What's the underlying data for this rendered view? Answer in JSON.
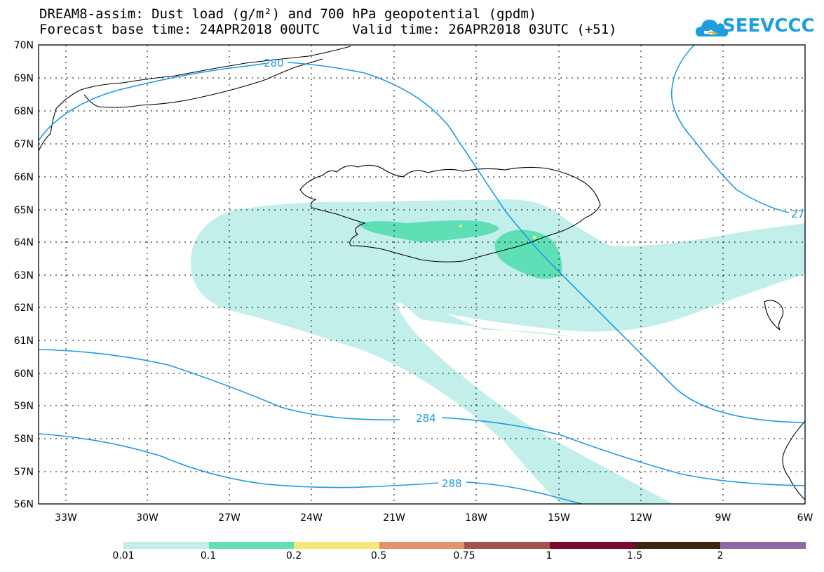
{
  "header": {
    "title_line1": "DREAM8-assim: Dust load (g/m²) and 700 hPa geopotential (gpdm)",
    "title_line2": "Forecast base time: 24APR2018 00UTC    Valid time: 26APR2018 03UTC (+51)",
    "logo_text": "SEEVCCC",
    "brand_color": "#1e9ee0"
  },
  "map": {
    "lat_labels": [
      "70N",
      "69N",
      "68N",
      "67N",
      "66N",
      "65N",
      "64N",
      "63N",
      "62N",
      "61N",
      "60N",
      "59N",
      "58N",
      "57N",
      "56N"
    ],
    "lon_labels": [
      "33W",
      "30W",
      "27W",
      "24W",
      "21W",
      "18W",
      "15W",
      "12W",
      "9W",
      "6W"
    ],
    "contour_labels": [
      "280",
      "27",
      "284",
      "288"
    ],
    "contour_color": "#1f9be6"
  },
  "colorbar": {
    "labels": [
      "0.01",
      "0.1",
      "0.2",
      "0.5",
      "0.75",
      "1",
      "1.5",
      "2"
    ],
    "colors": [
      "#c2efe9",
      "#5fdfb5",
      "#f7e77a",
      "#e5916c",
      "#a3524c",
      "#7c0a2c",
      "#3d2414",
      "#9068a5"
    ]
  }
}
